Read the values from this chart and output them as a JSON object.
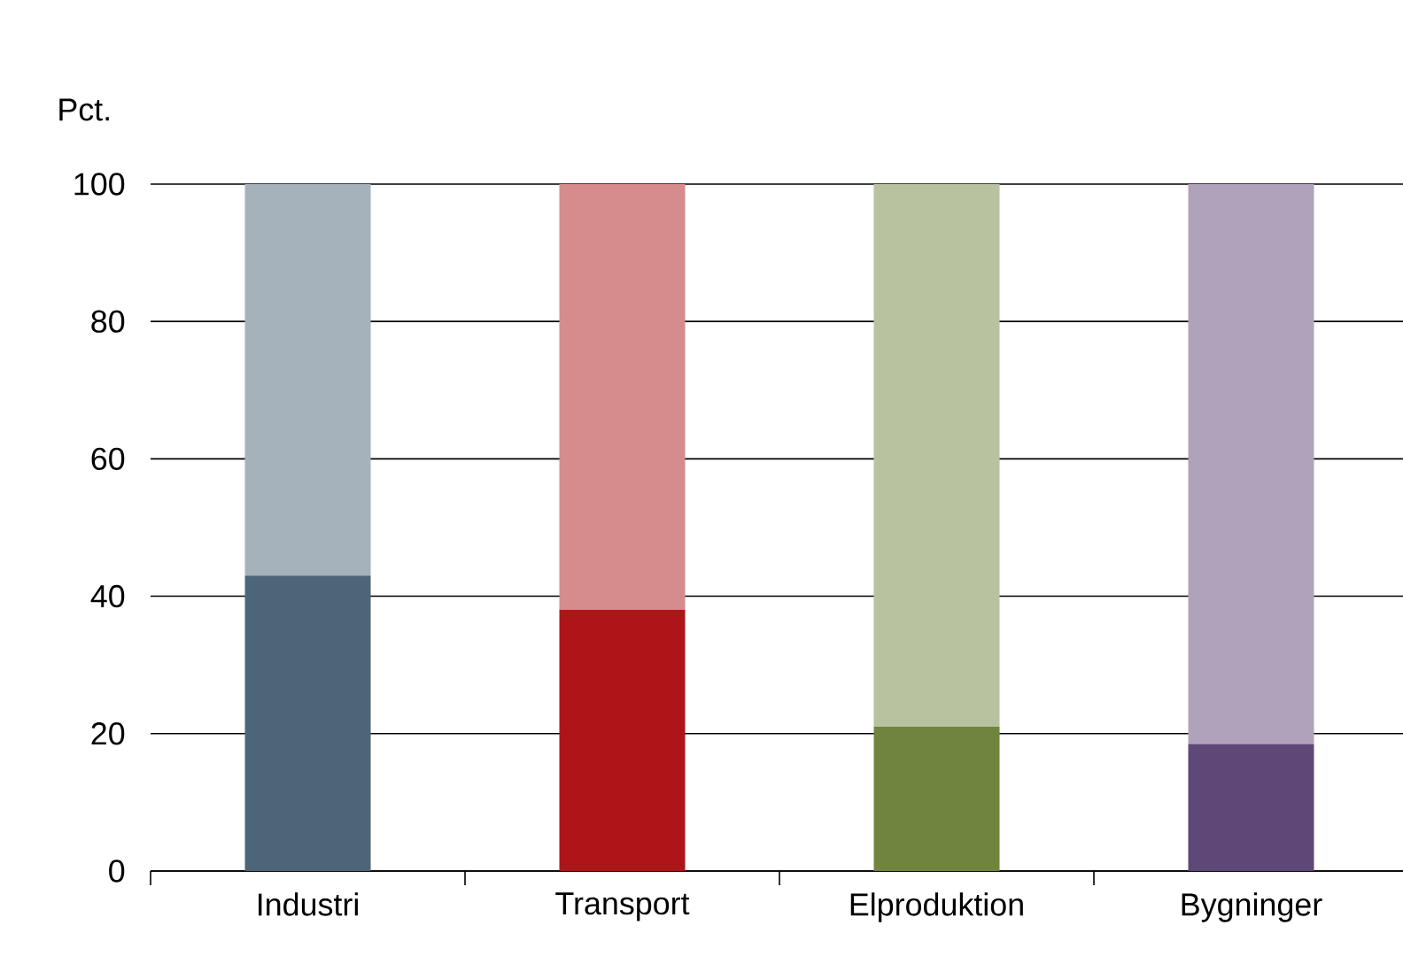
{
  "chart_data": {
    "type": "bar",
    "stacked": true,
    "ylabel": "Pct.",
    "categories": [
      "Industri",
      "Transport",
      "Elproduktion",
      "Bygninger"
    ],
    "series": [
      {
        "colors": [
          "#4d6577",
          "#ad1519",
          "#70843e",
          "#5f4777"
        ],
        "values": [
          43,
          38,
          21,
          18.5
        ]
      },
      {
        "colors": [
          "#a6b2bb",
          "#d68b8c",
          "#b8c29e",
          "#afa3bb"
        ],
        "values": [
          57,
          62,
          79,
          81.5
        ]
      }
    ],
    "ylim": [
      0,
      100
    ],
    "yticks": [
      0,
      20,
      40,
      60,
      80,
      100
    ],
    "grid": "y"
  }
}
